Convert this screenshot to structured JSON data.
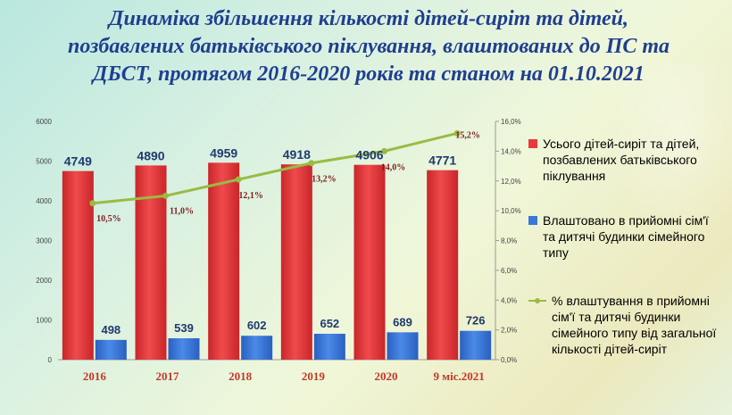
{
  "title": {
    "line1": "Динаміка  збільшення кількості  дітей-сиріт та дітей,",
    "line2": "позбавлених батьківського піклування, влаштованих до ПС та",
    "line3": "ДБСТ,  протягом 2016-2020 років та станом на 01.10.2021"
  },
  "chart_data": {
    "type": "bar",
    "categories": [
      "2016",
      "2017",
      "2018",
      "2019",
      "2020",
      "9 міс.2021"
    ],
    "series": [
      {
        "name": "Усього дітей-сиріт та дітей, позбавлених батьківського піклування",
        "type": "bar",
        "axis": "left",
        "color": "#e8393c",
        "values": [
          4749,
          4890,
          4959,
          4918,
          4906,
          4771
        ],
        "labels": [
          "4749",
          "4890",
          "4959",
          "4918",
          "4906",
          "4771"
        ]
      },
      {
        "name": "Влаштовано в прийомні сім'ї та дитячі будинки сімейного типу",
        "type": "bar",
        "axis": "left",
        "color": "#3a78d8",
        "values": [
          498,
          539,
          602,
          652,
          689,
          726
        ],
        "labels": [
          "498",
          "539",
          "602",
          "652",
          "689",
          "726"
        ]
      },
      {
        "name": "% влаштування в прийомні сім'ї та дитячі будинки сімейного типу від загальної кількості дітей-сиріт",
        "type": "line",
        "axis": "right",
        "color": "#99bb44",
        "values": [
          10.5,
          11.0,
          12.1,
          13.2,
          14.0,
          15.2
        ],
        "labels": [
          "10,5%",
          "11,0%",
          "12,1%",
          "13,2%",
          "14,0%",
          "15,2%"
        ]
      }
    ],
    "y_left": {
      "min": 0,
      "max": 6000,
      "ticks": [
        "0",
        "1000",
        "2000",
        "3000",
        "4000",
        "5000",
        "6000"
      ]
    },
    "y_right": {
      "min": 0,
      "max": 16,
      "ticks": [
        "0,0%",
        "2,0%",
        "4,0%",
        "6,0%",
        "8,0%",
        "10,0%",
        "12,0%",
        "14,0%",
        "16,0%"
      ]
    },
    "legend_position": "right",
    "grid": false
  },
  "legend": {
    "item1": "Усього дітей-сиріт та дітей, позбавлених батьківського піклування",
    "item2": "Влаштовано в прийомні сім'ї та дитячі будинки сімейного типу",
    "item3": "% влаштування в прийомні сім'ї та дитячі будинки сімейного типу від загальної кількості дітей-сиріт"
  }
}
